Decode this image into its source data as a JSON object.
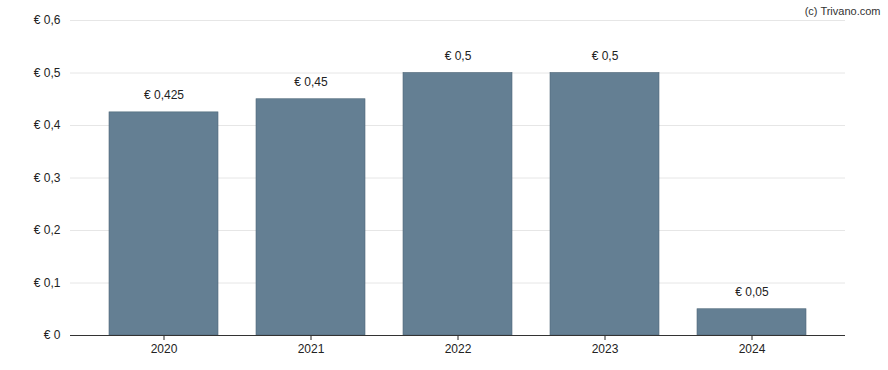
{
  "chart_data": {
    "type": "bar",
    "caption": "(c) Trivano.com",
    "categories": [
      "2020",
      "2021",
      "2022",
      "2023",
      "2024"
    ],
    "values": [
      0.425,
      0.45,
      0.5,
      0.5,
      0.05
    ],
    "value_labels": [
      "€ 0,425",
      "€ 0,45",
      "€ 0,5",
      "€ 0,5",
      "€ 0,05"
    ],
    "data_labels": true,
    "color": "#647f93",
    "ylim": [
      0,
      0.6
    ],
    "yticks": [
      {
        "value": 0,
        "label": "€ 0"
      },
      {
        "value": 0.1,
        "label": "€ 0,1"
      },
      {
        "value": 0.2,
        "label": "€ 0,2"
      },
      {
        "value": 0.3,
        "label": "€ 0,3"
      },
      {
        "value": 0.4,
        "label": "€ 0,4"
      },
      {
        "value": 0.5,
        "label": "€ 0,5"
      },
      {
        "value": 0.6,
        "label": "€ 0,6"
      }
    ],
    "grid": true
  }
}
